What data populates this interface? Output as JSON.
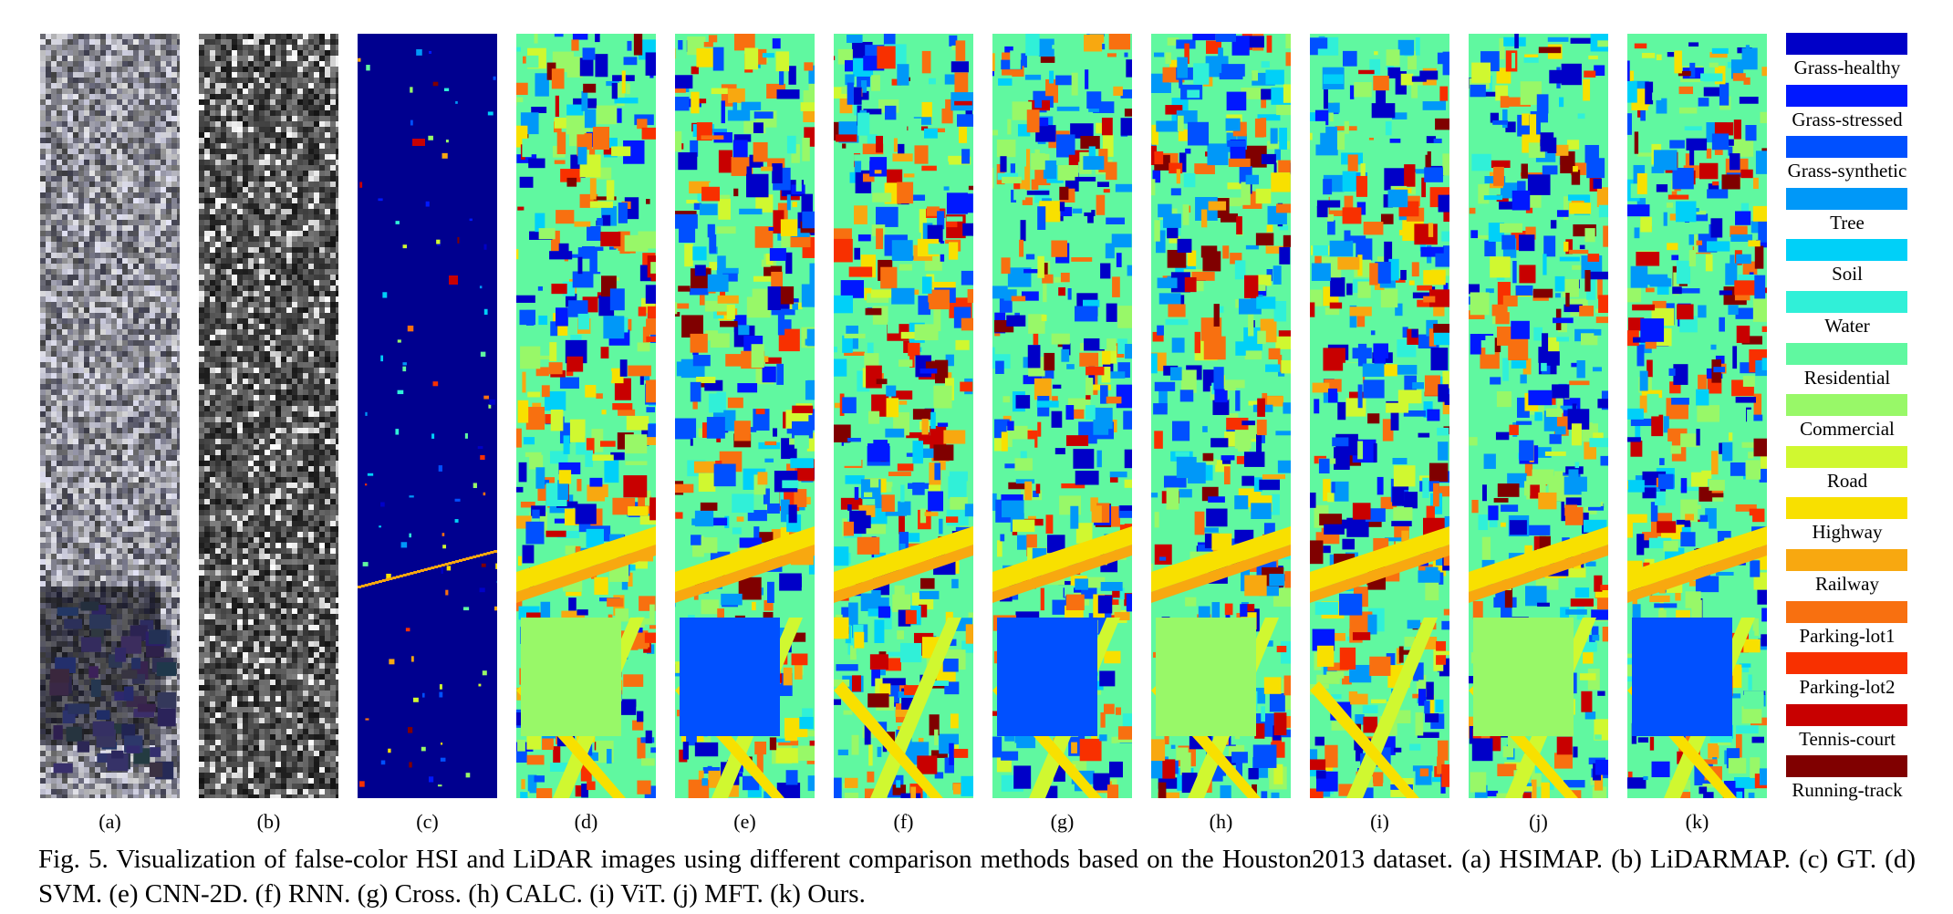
{
  "figure": {
    "caption": "Fig. 5.    Visualization of false-color HSI and LiDAR images using different comparison methods based on the Houston2013 dataset. (a) HSIMAP. (b) LiDARMAP. (c) GT. (d) SVM. (e) CNN-2D. (f) RNN. (g) Cross. (h) CALC. (i) ViT. (j) MFT. (k) Ours.",
    "panels": [
      {
        "label": "(a)",
        "kind": "hsi"
      },
      {
        "label": "(b)",
        "kind": "lidar"
      },
      {
        "label": "(c)",
        "kind": "gt"
      },
      {
        "label": "(d)",
        "kind": "cls"
      },
      {
        "label": "(e)",
        "kind": "cls"
      },
      {
        "label": "(f)",
        "kind": "cls"
      },
      {
        "label": "(g)",
        "kind": "cls"
      },
      {
        "label": "(h)",
        "kind": "cls"
      },
      {
        "label": "(i)",
        "kind": "cls"
      },
      {
        "label": "(j)",
        "kind": "cls"
      },
      {
        "label": "(k)",
        "kind": "cls"
      }
    ],
    "legend": [
      {
        "label": "Grass-healthy",
        "color": "#0000c8"
      },
      {
        "label": "Grass-stressed",
        "color": "#0018ff"
      },
      {
        "label": "Grass-synthetic",
        "color": "#0050ff"
      },
      {
        "label": "Tree",
        "color": "#0098f8"
      },
      {
        "label": "Soil",
        "color": "#00d0f8"
      },
      {
        "label": "Water",
        "color": "#30f0d8"
      },
      {
        "label": "Residential",
        "color": "#60f8a0"
      },
      {
        "label": "Commercial",
        "color": "#98f868"
      },
      {
        "label": "Road",
        "color": "#d0f830"
      },
      {
        "label": "Highway",
        "color": "#f8e000"
      },
      {
        "label": "Railway",
        "color": "#f8a810"
      },
      {
        "label": "Parking-lot1",
        "color": "#f87010"
      },
      {
        "label": "Parking-lot2",
        "color": "#f83000"
      },
      {
        "label": "Tennis-court",
        "color": "#c80000"
      },
      {
        "label": "Running-track",
        "color": "#800000"
      }
    ]
  }
}
